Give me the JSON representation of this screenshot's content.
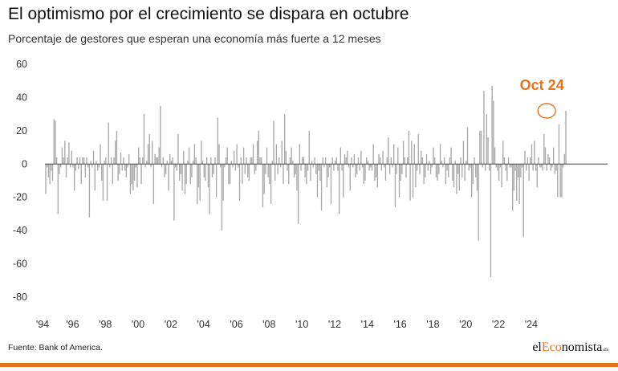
{
  "header": {
    "title": "El optimismo por el crecimiento se dispara en octubre",
    "subtitle": "Porcentaje de gestores que esperan una economía más fuerte a 12 meses"
  },
  "footer": {
    "source": "Fuente: Bank of America.",
    "logo": {
      "prefix": "el",
      "accent": "Eco",
      "rest": "nomista",
      "suffix": ".es"
    }
  },
  "colors": {
    "bars": "#a9a9a9",
    "highlight": "#e8731e",
    "axis": "#444444"
  },
  "chart_data": {
    "type": "bar",
    "title": "El optimismo por el crecimiento se dispara en octubre",
    "subtitle": "Porcentaje de gestores que esperan una economía más fuerte a 12 meses",
    "ylim": [
      -80,
      60
    ],
    "yticks": [
      60,
      40,
      20,
      0,
      -20,
      -40,
      -60,
      -80
    ],
    "xticks": [
      "'94",
      "'96",
      "'98",
      "'00",
      "'02",
      "'04",
      "'06",
      "'08",
      "'10",
      "'12",
      "'14",
      "'16",
      "'18",
      "'20",
      "'22",
      "'24"
    ],
    "x_start": "1994-03",
    "annotation": {
      "label": "Oct 24",
      "x": "2024-10",
      "value": 32
    },
    "series": [
      {
        "values": [
          -18,
          -2,
          -8,
          -12,
          -4,
          -10,
          27,
          26,
          4,
          -30,
          -6,
          -2,
          10,
          4,
          14,
          -8,
          4,
          13,
          -2,
          8,
          -2,
          -16,
          -4,
          4,
          -3,
          4,
          -12,
          4,
          4,
          -8,
          4,
          -2,
          -32,
          2,
          -2,
          8,
          -16,
          2,
          -4,
          -2,
          12,
          -10,
          -22,
          2,
          4,
          -22,
          25,
          -2,
          4,
          -12,
          4,
          14,
          20,
          -10,
          -6,
          7,
          -4,
          4,
          -4,
          -8,
          -2,
          6,
          -18,
          -12,
          -16,
          -10,
          -2,
          -14,
          10,
          4,
          -12,
          4,
          30,
          -2,
          2,
          12,
          18,
          -2,
          14,
          -24,
          6,
          4,
          4,
          10,
          35,
          -2,
          4,
          -8,
          -6,
          2,
          -16,
          6,
          2,
          4,
          -34,
          -2,
          -4,
          18,
          -10,
          -6,
          -16,
          8,
          -18,
          -12,
          2,
          10,
          -12,
          -8,
          2,
          12,
          4,
          -24,
          -14,
          -22,
          14,
          2,
          -8,
          -10,
          4,
          -14,
          -30,
          4,
          -8,
          -6,
          4,
          -20,
          28,
          12,
          -2,
          -40,
          -22,
          -2,
          4,
          10,
          -12,
          -12,
          2,
          -2,
          8,
          -4,
          12,
          -2,
          -22,
          4,
          -12,
          10,
          -6,
          4,
          -8,
          -10,
          4,
          4,
          12,
          -6,
          -4,
          14,
          20,
          4,
          4,
          -26,
          -18,
          -6,
          10,
          -8,
          -12,
          -24,
          2,
          26,
          -10,
          12,
          -6,
          4,
          -2,
          14,
          -12,
          30,
          8,
          -4,
          -12,
          4,
          10,
          2,
          -8,
          -6,
          -16,
          -36,
          12,
          -4,
          4,
          4,
          -8,
          -12,
          -4,
          20,
          -10,
          2,
          -2,
          4,
          -6,
          -20,
          -4,
          -10,
          -28,
          4,
          -2,
          4,
          -14,
          -8,
          -2,
          -24,
          4,
          -4,
          2,
          4,
          -4,
          -30,
          10,
          -4,
          -20,
          6,
          4,
          8,
          -2,
          -16,
          4,
          -2,
          6,
          -8,
          -6,
          4,
          -4,
          8,
          -2,
          -12,
          -10,
          4,
          2,
          -4,
          -2,
          -4,
          12,
          -10,
          -8,
          -14,
          6,
          4,
          -4,
          8,
          -2,
          -10,
          4,
          16,
          -6,
          4,
          -2,
          12,
          -26,
          -6,
          10,
          -20,
          -10,
          -6,
          14,
          4,
          -8,
          4,
          20,
          -22,
          14,
          -20,
          12,
          -14,
          -4,
          18,
          -6,
          8,
          4,
          -12,
          -8,
          6,
          -4,
          2,
          -6,
          -2,
          10,
          4,
          -8,
          -10,
          -6,
          12,
          2,
          -2,
          4,
          -12,
          -4,
          -8,
          4,
          10,
          -10,
          -14,
          2,
          -18,
          -6,
          -16,
          4,
          -8,
          14,
          -10,
          2,
          22,
          -4,
          -2,
          -20,
          -12,
          4,
          -8,
          -16,
          -46,
          20,
          20,
          -2,
          44,
          -4,
          30,
          16,
          -4,
          -68,
          47,
          38,
          10,
          -2,
          -4,
          -10,
          -2,
          -14,
          14,
          4,
          -4,
          -10,
          4,
          -2,
          -2,
          -28,
          -16,
          -4,
          -22,
          -8,
          -24,
          -8,
          -2,
          -44,
          8,
          -4,
          4,
          -10,
          4,
          12,
          -4,
          14,
          -4,
          -14,
          4,
          -2,
          -2,
          -4,
          18,
          10,
          -4,
          6,
          4,
          -4,
          -2,
          10,
          -6,
          -4,
          -20,
          24,
          -20,
          -20,
          -2,
          6,
          32
        ]
      }
    ]
  }
}
